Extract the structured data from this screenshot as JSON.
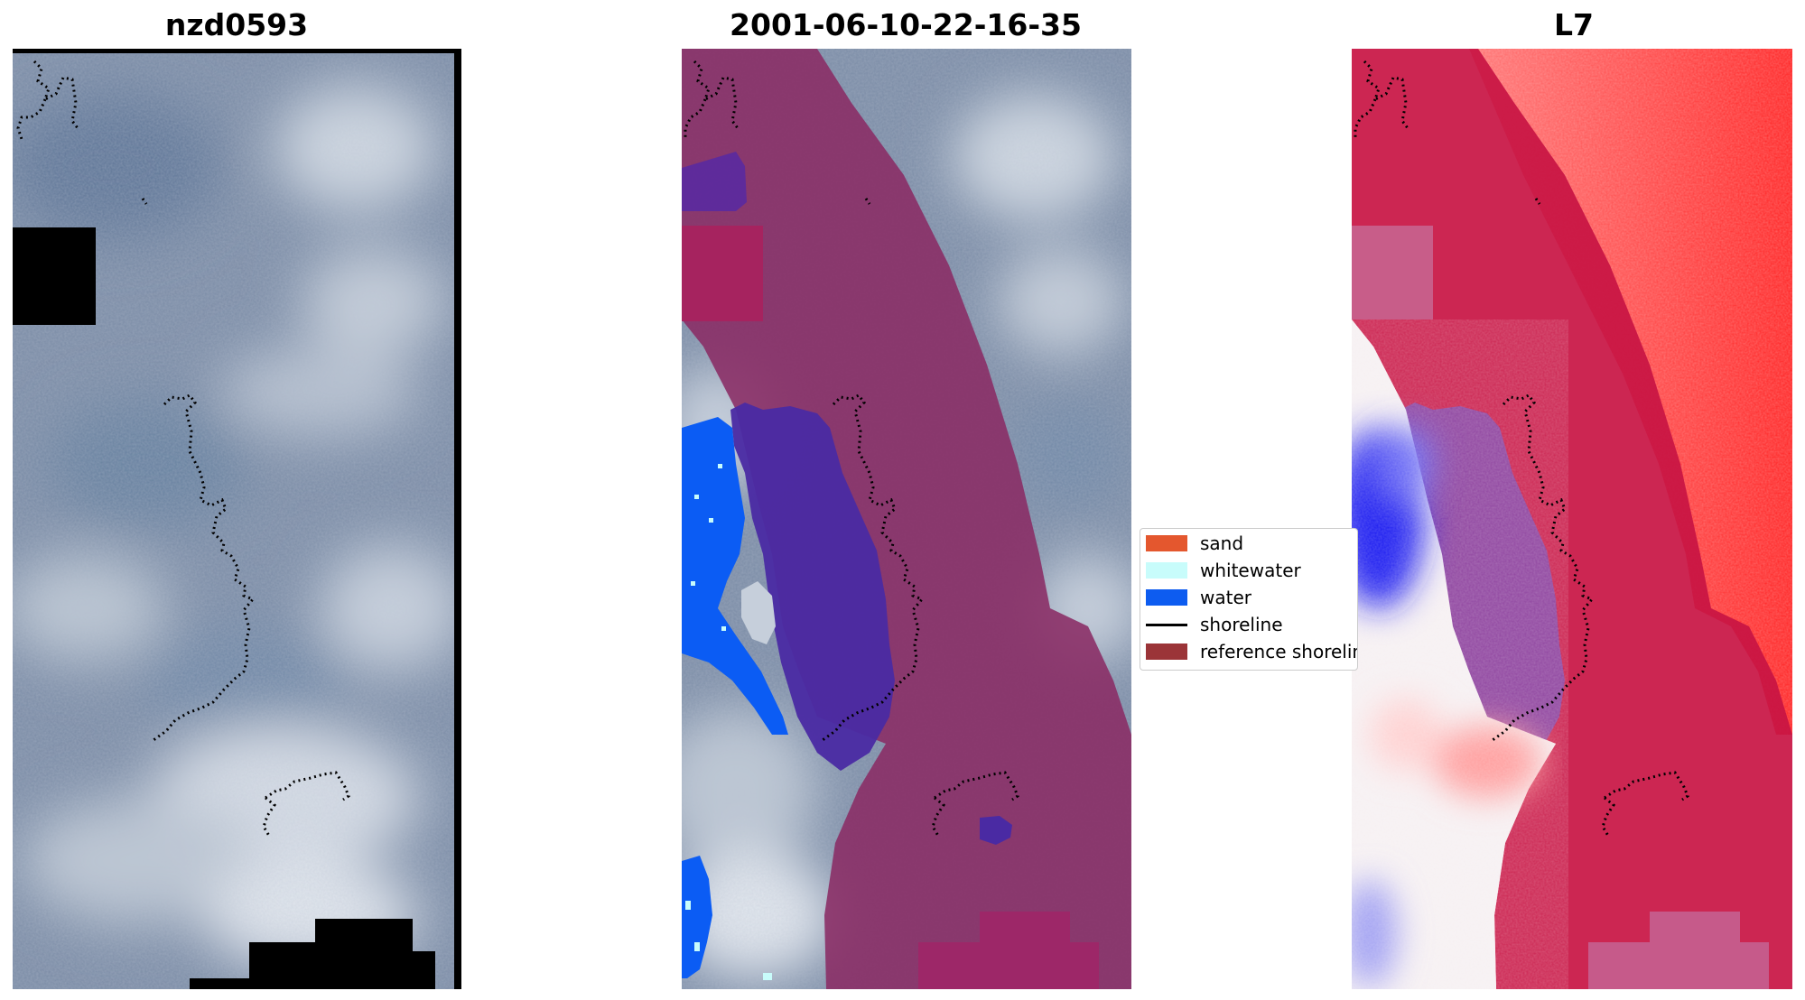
{
  "panels": [
    {
      "title": "nzd0593"
    },
    {
      "title": "2001-06-10-22-16-35"
    },
    {
      "title": "L7"
    }
  ],
  "legend": {
    "items": [
      {
        "label": "sand",
        "color": "#e4572e",
        "kind": "patch"
      },
      {
        "label": "whitewater",
        "color": "#c8fcfb",
        "kind": "patch"
      },
      {
        "label": "water",
        "color": "#0d5cf0",
        "kind": "patch"
      },
      {
        "label": "shoreline",
        "color": "#000000",
        "kind": "line"
      },
      {
        "label": "reference shoreline",
        "color": "#9b3438",
        "kind": "patch"
      }
    ]
  },
  "colors": {
    "satellite_base": "#7f90a8",
    "cloud": "#d6dde6",
    "nodata": "#000000",
    "buffer_overlay": "#8c2a63",
    "classified_water": "#0b5cf4",
    "classified_dark": "#4a2aa0",
    "index_red": "#ff2b2b",
    "index_blue": "#1a1aef"
  }
}
